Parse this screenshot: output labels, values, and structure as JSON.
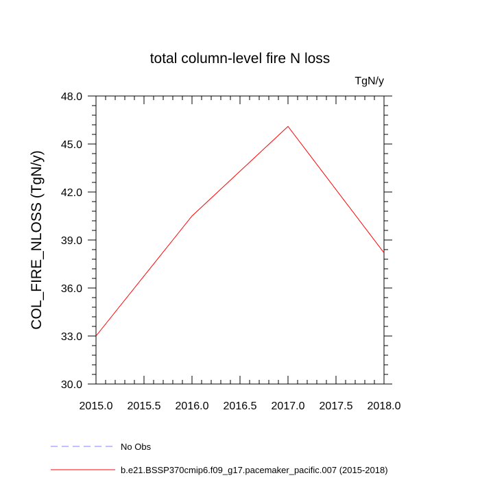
{
  "chart_data": {
    "type": "line",
    "title": "total column-level fire N loss",
    "units": "TgN/y",
    "xlabel": "",
    "ylabel": "COL_FIRE_NLOSS  (TgN/y)",
    "xlim": [
      2015.0,
      2018.0
    ],
    "ylim": [
      30.0,
      48.0
    ],
    "x_ticks": [
      "2015.0",
      "2015.5",
      "2016.0",
      "2016.5",
      "2017.0",
      "2017.5",
      "2018.0"
    ],
    "y_ticks": [
      "30.0",
      "33.0",
      "36.0",
      "39.0",
      "42.0",
      "45.0",
      "48.0"
    ],
    "grid": false,
    "legend_placement": "bottom-left",
    "series": [
      {
        "name": "b.e21.BSSP370cmip6.f09_g17.pacemaker_pacific.007 (2015-2018)",
        "color": "#ff0000",
        "dash": "solid",
        "x": [
          2015,
          2016,
          2017,
          2018
        ],
        "y": [
          33.0,
          40.5,
          46.1,
          38.2
        ]
      }
    ],
    "legend": [
      {
        "label": "No Obs",
        "color": "#8080ff",
        "dash": "dashed"
      },
      {
        "label": "b.e21.BSSP370cmip6.f09_g17.pacemaker_pacific.007 (2015-2018)",
        "color": "#ff0000",
        "dash": "solid"
      }
    ]
  }
}
